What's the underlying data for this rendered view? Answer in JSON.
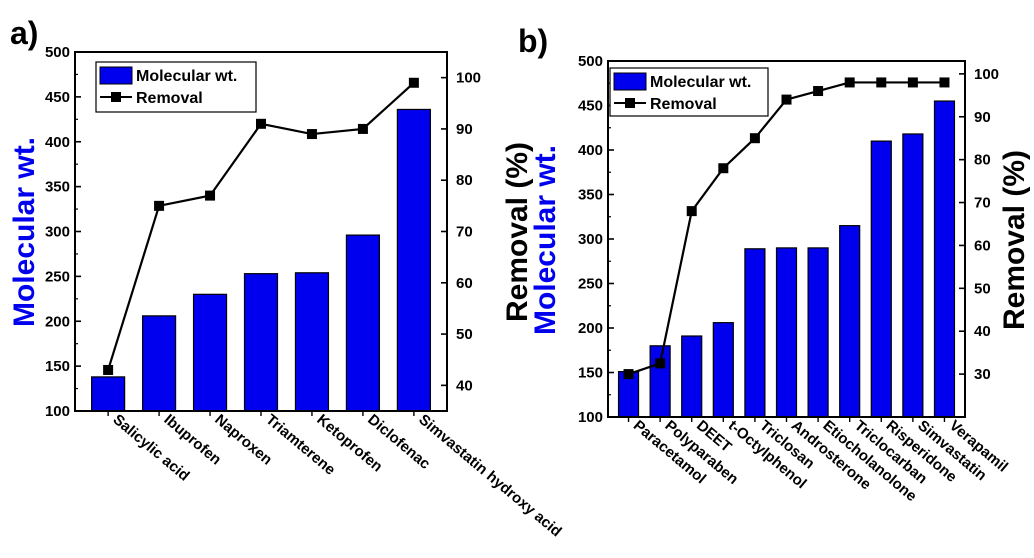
{
  "colors": {
    "bar": "#0000ee",
    "line": "#000000"
  },
  "chart_data": [
    {
      "panel_label": "a)",
      "type": "bar+line",
      "categories": [
        "Salicylic acid",
        "Ibuprofen",
        "Naproxen",
        "Triamterene",
        "Ketoprofen",
        "Diclofenac",
        "Simvastatin hydroxy acid"
      ],
      "series": [
        {
          "name": "Molecular wt.",
          "type": "bar",
          "axis": "left",
          "values": [
            138,
            206,
            230,
            253,
            254,
            296,
            436
          ]
        },
        {
          "name": "Removal",
          "type": "line",
          "axis": "right",
          "values": [
            43,
            75,
            77,
            91,
            89,
            90,
            99
          ]
        }
      ],
      "ylabel_left": "Molecular wt.",
      "ylabel_right": "Removal (%)",
      "ylim_left": [
        100,
        500
      ],
      "ylim_right": [
        35,
        105
      ],
      "yticks_left": [
        "100",
        "150",
        "200",
        "250",
        "300",
        "350",
        "400",
        "450",
        "500"
      ],
      "yticks_right": [
        "40",
        "50",
        "60",
        "70",
        "80",
        "90",
        "100"
      ],
      "legend": "top-left"
    },
    {
      "panel_label": "b)",
      "type": "bar+line",
      "categories": [
        "Paracetamol",
        "Polyparaben",
        "DEET",
        "t-Octylphenol",
        "Triclosan",
        "Androsterone",
        "Etiocholanolone",
        "Triclocarban",
        "Risperidone",
        "Simvastatin",
        "Verapamil"
      ],
      "series": [
        {
          "name": "Molecular wt.",
          "type": "bar",
          "axis": "left",
          "values": [
            151,
            180,
            191,
            206,
            289,
            290,
            290,
            315,
            410,
            418,
            455
          ]
        },
        {
          "name": "Removal",
          "type": "line",
          "axis": "right",
          "values": [
            30,
            32.5,
            68,
            78,
            85,
            94,
            96,
            98,
            98,
            98,
            98
          ]
        }
      ],
      "ylabel_left": "Molecular wt.",
      "ylabel_right": "Removal (%)",
      "ylim_left": [
        100,
        500
      ],
      "ylim_right": [
        20,
        103
      ],
      "yticks_left": [
        "100",
        "150",
        "200",
        "250",
        "300",
        "350",
        "400",
        "450",
        "500"
      ],
      "yticks_right": [
        "30",
        "40",
        "50",
        "60",
        "70",
        "80",
        "90",
        "100"
      ],
      "legend": "top-left"
    }
  ]
}
